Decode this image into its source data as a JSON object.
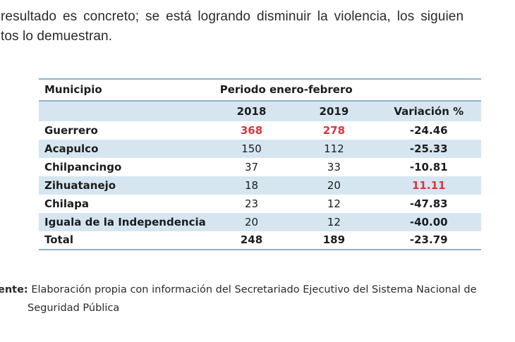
{
  "paragraph": {
    "line1": "resultado es concreto; se está logrando disminuir la violencia, los siguien",
    "line2": "tos lo demuestran."
  },
  "table": {
    "header": {
      "municipio": "Municipio",
      "period": "Periodo enero-febrero"
    },
    "subheader": {
      "y2018": "2018",
      "y2019": "2019",
      "variation": "Variación %"
    },
    "rows": [
      {
        "name": "Guerrero",
        "y2018": "368",
        "y2019": "278",
        "variation": "-24.46"
      },
      {
        "name": "Acapulco",
        "y2018": "150",
        "y2019": "112",
        "variation": "-25.33"
      },
      {
        "name": "Chilpancingo",
        "y2018": "37",
        "y2019": "33",
        "variation": "-10.81"
      },
      {
        "name": "Zihuatanejo",
        "y2018": "18",
        "y2019": "20",
        "variation": "11.11"
      },
      {
        "name": "Chilapa",
        "y2018": "23",
        "y2019": "12",
        "variation": "-47.83"
      },
      {
        "name": "Iguala de la Independencia",
        "y2018": "20",
        "y2019": "12",
        "variation": "-40.00"
      }
    ],
    "total": {
      "name": "Total",
      "y2018": "248",
      "y2019": "189",
      "variation": "-23.79"
    },
    "colors": {
      "highlight_red": "#d9353a",
      "row_shade": "#d6e6f0",
      "rule": "#8db3cc"
    }
  },
  "source": {
    "label": "ente:",
    "line1": "Elaboración propia con información del Secretariado Ejecutivo del Sistema Nacional de",
    "line2": "Seguridad Pública"
  }
}
